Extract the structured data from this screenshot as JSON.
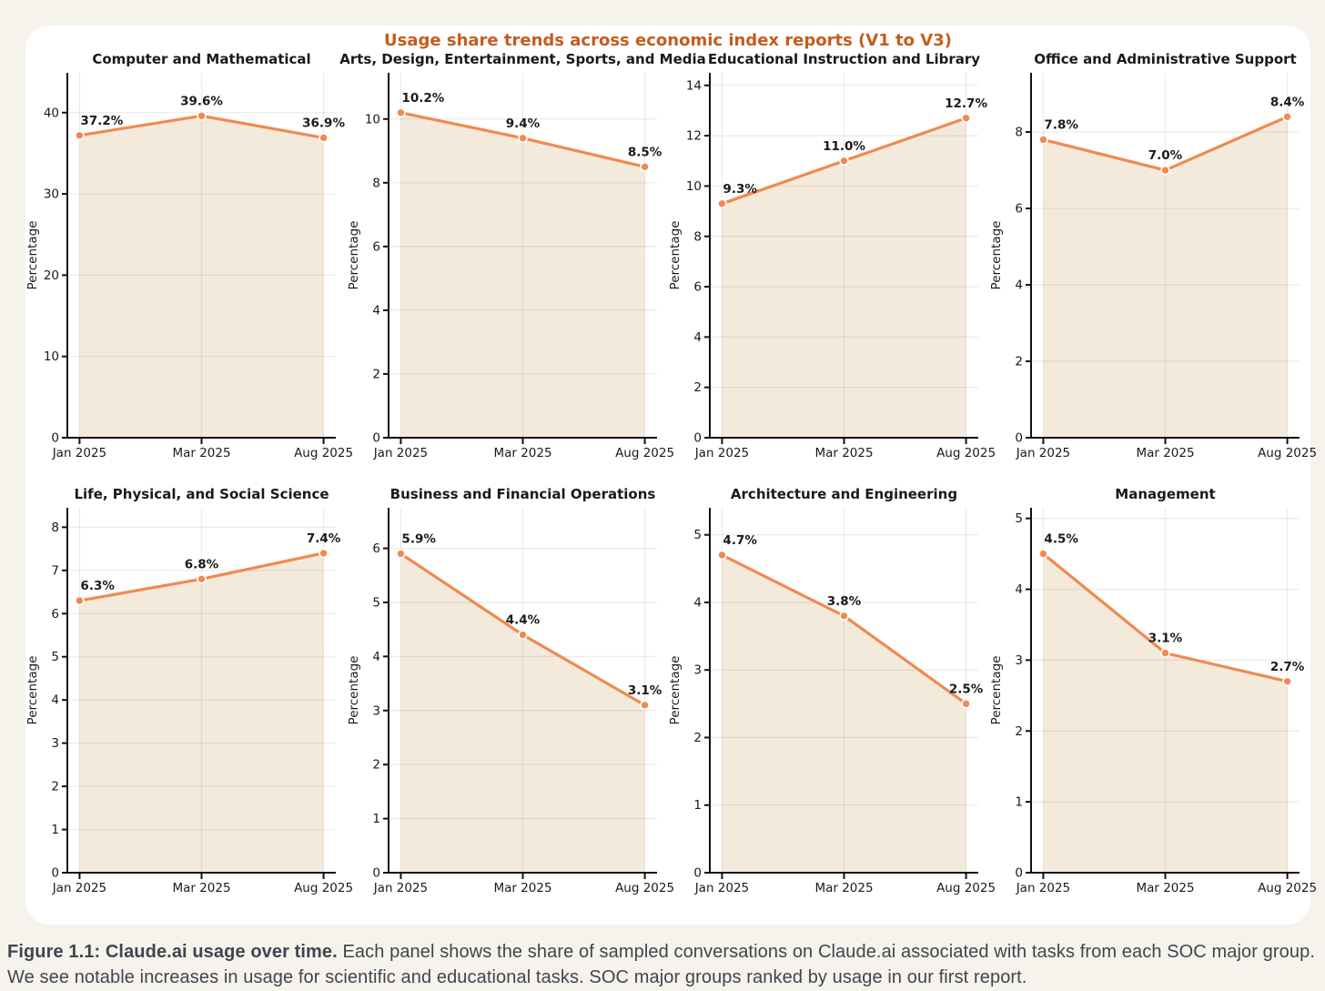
{
  "suptitle": "Usage share trends across economic index reports (V1 to V3)",
  "caption": {
    "bold": "Figure 1.1: Claude.ai usage over time.",
    "rest": " Each panel shows the share of sampled conversations on Claude.ai associated with tasks from each SOC major group. We see notable increases in usage for scientific and educational tasks. SOC major groups ranked by usage in our first report."
  },
  "chart_data": {
    "type": "area",
    "x": [
      "Jan 2025",
      "Mar 2025",
      "Aug 2025"
    ],
    "ylabel": "Percentage",
    "legend": null,
    "grid": true,
    "colors": {
      "line": "#EF8A51",
      "marker": "#EF8A51",
      "marker_edge": "#FFFFFF",
      "fill": "#F4EADC",
      "gridline": "rgba(0,0,0,0.08)",
      "spine": "#111111",
      "text": "#1A1A1A",
      "suptitle": "#C55C1D",
      "page_bg": "#F5F3EC",
      "card_bg": "#FFFFFF"
    },
    "panels": [
      {
        "title": "Computer and Mathematical",
        "values": [
          37.2,
          39.6,
          36.9
        ],
        "labels": [
          "37.2%",
          "39.6%",
          "36.9%"
        ],
        "ylim": [
          0,
          44.9
        ],
        "yticks": [
          0,
          10,
          20,
          30,
          40
        ]
      },
      {
        "title": "Arts, Design, Entertainment, Sports, and Media",
        "values": [
          10.2,
          9.4,
          8.5
        ],
        "labels": [
          "10.2%",
          "9.4%",
          "8.5%"
        ],
        "ylim": [
          0,
          11.45
        ],
        "yticks": [
          0,
          2,
          4,
          6,
          8,
          10
        ]
      },
      {
        "title": "Educational Instruction and Library",
        "values": [
          9.3,
          11.0,
          12.7
        ],
        "labels": [
          "9.3%",
          "11.0%",
          "12.7%"
        ],
        "ylim": [
          0,
          14.5
        ],
        "yticks": [
          0,
          2,
          4,
          6,
          8,
          10,
          12,
          14
        ]
      },
      {
        "title": "Office and Administrative Support",
        "values": [
          7.8,
          7.0,
          8.4
        ],
        "labels": [
          "7.8%",
          "7.0%",
          "8.4%"
        ],
        "ylim": [
          0,
          9.55
        ],
        "yticks": [
          0,
          2,
          4,
          6,
          8
        ]
      },
      {
        "title": "Life, Physical, and Social Science",
        "values": [
          6.3,
          6.8,
          7.4
        ],
        "labels": [
          "6.3%",
          "6.8%",
          "7.4%"
        ],
        "ylim": [
          0,
          8.45
        ],
        "yticks": [
          0,
          1,
          2,
          3,
          4,
          5,
          6,
          7,
          8
        ]
      },
      {
        "title": "Business and Financial Operations",
        "values": [
          5.9,
          4.4,
          3.1
        ],
        "labels": [
          "5.9%",
          "4.4%",
          "3.1%"
        ],
        "ylim": [
          0,
          6.75
        ],
        "yticks": [
          0,
          1,
          2,
          3,
          4,
          5,
          6
        ]
      },
      {
        "title": "Architecture and Engineering",
        "values": [
          4.7,
          3.8,
          2.5
        ],
        "labels": [
          "4.7%",
          "3.8%",
          "2.5%"
        ],
        "ylim": [
          0,
          5.4
        ],
        "yticks": [
          0,
          1,
          2,
          3,
          4,
          5
        ]
      },
      {
        "title": "Management",
        "values": [
          4.5,
          3.1,
          2.7
        ],
        "labels": [
          "4.5%",
          "3.1%",
          "2.7%"
        ],
        "ylim": [
          0,
          5.15
        ],
        "yticks": [
          0,
          1,
          2,
          3,
          4,
          5
        ]
      }
    ]
  }
}
